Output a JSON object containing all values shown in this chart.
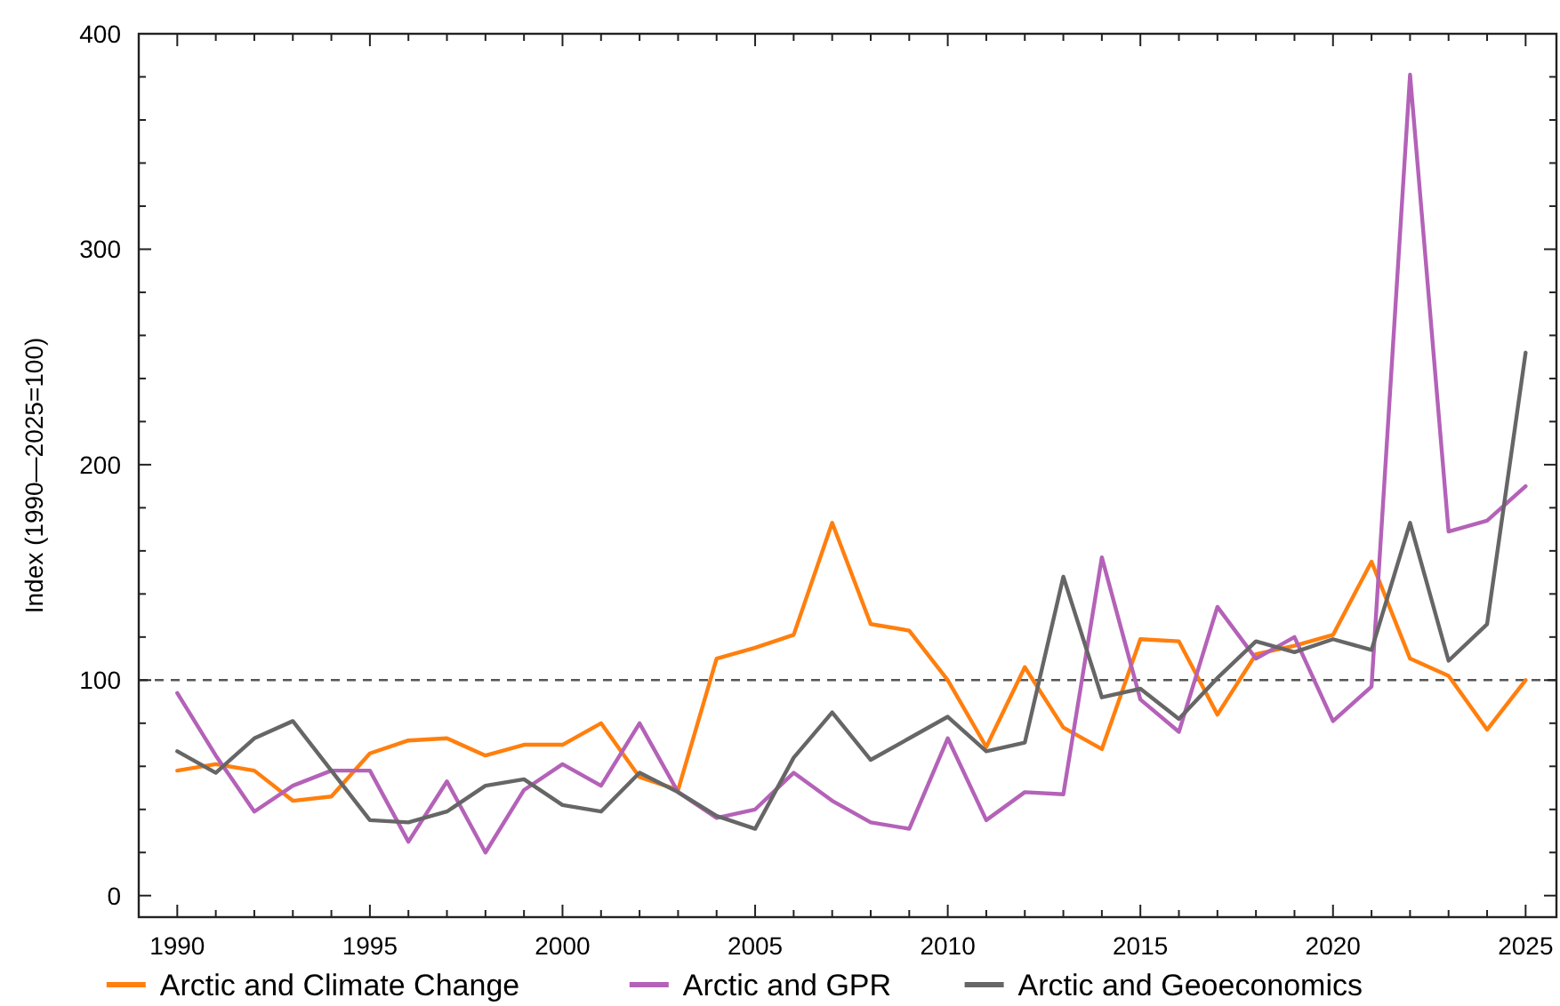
{
  "chart_data": {
    "type": "line",
    "ylabel": "Index (1990—2025=100)",
    "x": [
      1990,
      1991,
      1992,
      1993,
      1994,
      1995,
      1996,
      1997,
      1998,
      1999,
      2000,
      2001,
      2002,
      2003,
      2004,
      2005,
      2006,
      2007,
      2008,
      2009,
      2010,
      2011,
      2012,
      2013,
      2014,
      2015,
      2016,
      2017,
      2018,
      2019,
      2020,
      2021,
      2022,
      2023,
      2024,
      2025
    ],
    "series": [
      {
        "name": "Arctic and Climate Change",
        "color": "#ff7f0e",
        "values": [
          58,
          61,
          58,
          44,
          46,
          66,
          72,
          73,
          65,
          70,
          70,
          80,
          55,
          49,
          110,
          115,
          121,
          173,
          126,
          123,
          100,
          69,
          106,
          78,
          68,
          119,
          118,
          84,
          112,
          116,
          121,
          155,
          110,
          102,
          77,
          100
        ]
      },
      {
        "name": "Arctic and GPR",
        "color": "#b462b8",
        "values": [
          94,
          65,
          39,
          51,
          58,
          58,
          25,
          53,
          20,
          49,
          61,
          51,
          80,
          48,
          36,
          40,
          57,
          44,
          34,
          31,
          73,
          35,
          48,
          47,
          157,
          91,
          76,
          134,
          110,
          120,
          81,
          97,
          381,
          169,
          174,
          190
        ]
      },
      {
        "name": "Arctic and Geoeconomics",
        "color": "#666666",
        "values": [
          67,
          57,
          73,
          81,
          58,
          35,
          34,
          39,
          51,
          54,
          42,
          39,
          57,
          48,
          37,
          31,
          64,
          85,
          63,
          73,
          83,
          67,
          71,
          148,
          92,
          96,
          82,
          101,
          118,
          113,
          119,
          114,
          173,
          109,
          126,
          252
        ]
      }
    ],
    "xlim": [
      1989,
      2025.8
    ],
    "ylim": [
      -10,
      400
    ],
    "xticks": [
      1990,
      {
        "value": 1991,
        "label": null
      },
      {
        "value": 1992,
        "label": null
      },
      {
        "value": 1993,
        "label": null
      },
      {
        "value": 1994,
        "label": null
      },
      1995,
      {
        "value": 1996,
        "label": null
      },
      {
        "value": 1997,
        "label": null
      },
      {
        "value": 1998,
        "label": null
      },
      {
        "value": 1999,
        "label": null
      },
      2000,
      {
        "value": 2001,
        "label": null
      },
      {
        "value": 2002,
        "label": null
      },
      {
        "value": 2003,
        "label": null
      },
      {
        "value": 2004,
        "label": null
      },
      2005,
      {
        "value": 2006,
        "label": null
      },
      {
        "value": 2007,
        "label": null
      },
      {
        "value": 2008,
        "label": null
      },
      {
        "value": 2009,
        "label": null
      },
      2010,
      {
        "value": 2011,
        "label": null
      },
      {
        "value": 2012,
        "label": null
      },
      {
        "value": 2013,
        "label": null
      },
      {
        "value": 2014,
        "label": null
      },
      2015,
      {
        "value": 2016,
        "label": null
      },
      {
        "value": 2017,
        "label": null
      },
      {
        "value": 2018,
        "label": null
      },
      {
        "value": 2019,
        "label": null
      },
      2020,
      {
        "value": 2021,
        "label": null
      },
      {
        "value": 2022,
        "label": null
      },
      {
        "value": 2023,
        "label": null
      },
      {
        "value": 2024,
        "label": null
      },
      2025
    ],
    "yticks": [
      0,
      {
        "value": 20,
        "label": null
      },
      {
        "value": 40,
        "label": null
      },
      {
        "value": 60,
        "label": null
      },
      {
        "value": 80,
        "label": null
      },
      100,
      {
        "value": 120,
        "label": null
      },
      {
        "value": 140,
        "label": null
      },
      {
        "value": 160,
        "label": null
      },
      {
        "value": 180,
        "label": null
      },
      200,
      {
        "value": 220,
        "label": null
      },
      {
        "value": 240,
        "label": null
      },
      {
        "value": 260,
        "label": null
      },
      {
        "value": 280,
        "label": null
      },
      300,
      {
        "value": 320,
        "label": null
      },
      {
        "value": 340,
        "label": null
      },
      {
        "value": 360,
        "label": null
      },
      {
        "value": 380,
        "label": null
      },
      400
    ],
    "ref_lines": [
      {
        "axis": "y",
        "value": 100,
        "color": "#555555",
        "line_style": "dashed"
      }
    ],
    "grid": false,
    "legend": "bottom",
    "marker": "none",
    "line_style": "solid"
  }
}
